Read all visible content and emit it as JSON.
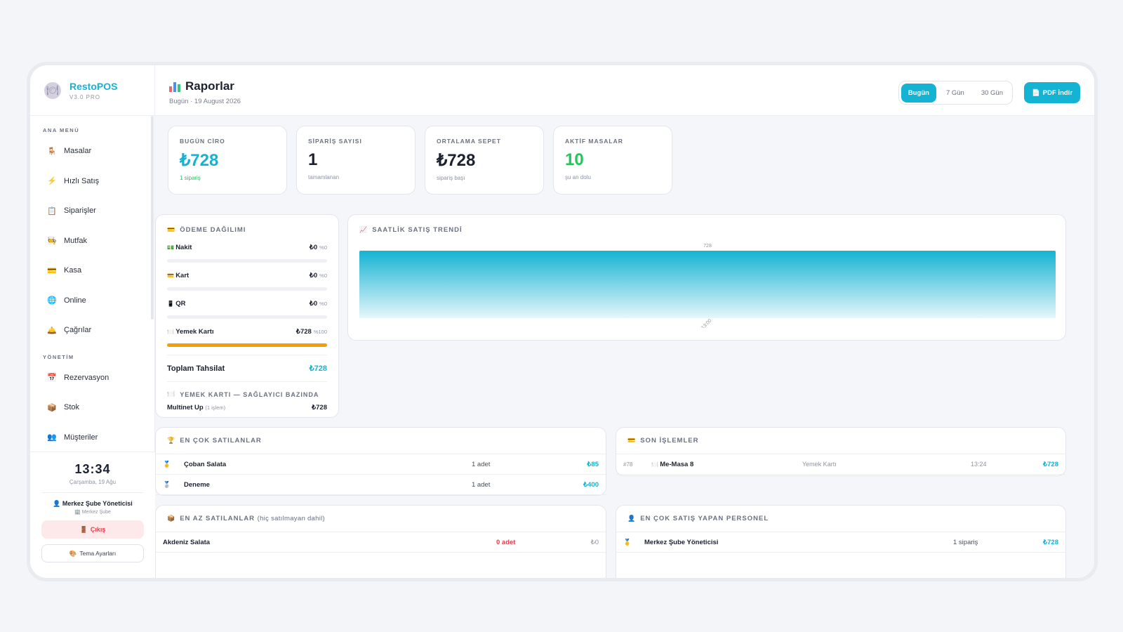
{
  "brand": {
    "name": "RestoPOS",
    "version": "V3.0 PRO"
  },
  "sidebar": {
    "section_main": "ANA MENÜ",
    "main_items": [
      {
        "label": "Masalar",
        "icon": "🪑"
      },
      {
        "label": "Hızlı Satış",
        "icon": "⚡"
      },
      {
        "label": "Siparişler",
        "icon": "📋"
      },
      {
        "label": "Mutfak",
        "icon": "🧑‍🍳"
      },
      {
        "label": "Kasa",
        "icon": "💳"
      },
      {
        "label": "Online",
        "icon": "🌐"
      },
      {
        "label": "Çağrılar",
        "icon": "🛎️"
      }
    ],
    "section_admin": "YÖNETİM",
    "admin_items": [
      {
        "label": "Rezervasyon",
        "icon": "📅"
      },
      {
        "label": "Stok",
        "icon": "📦"
      },
      {
        "label": "Müşteriler",
        "icon": "👥"
      }
    ],
    "clock": "13:34",
    "date": "Çarşamba, 19 Ağu",
    "user_name": "Merkez Şube Yöneticisi",
    "user_branch": "Merkez Şube",
    "logout": "Çıkış",
    "theme": "Tema Ayarları"
  },
  "header": {
    "title": "Raporlar",
    "subtitle": "Bugün · 19 August 2026",
    "ranges": [
      "Bugün",
      "7 Gün",
      "30 Gün"
    ],
    "pdf": "PDF İndir"
  },
  "kpis": [
    {
      "label": "BUGÜN CİRO",
      "value": "₺728",
      "sub": "1 sipariş",
      "color": "#14b3d3",
      "subcolor": "#22c55e"
    },
    {
      "label": "SİPARİŞ SAYISI",
      "value": "1",
      "sub": "tamamlanan",
      "color": "#1d2230",
      "subcolor": "#8f94a3"
    },
    {
      "label": "ORTALAMA SEPET",
      "value": "₺728",
      "sub": "sipariş başı",
      "color": "#1d2230",
      "subcolor": "#8f94a3"
    },
    {
      "label": "AKTİF MASALAR",
      "value": "10",
      "sub": "şu an dolu",
      "color": "#22c55e",
      "subcolor": "#8f94a3"
    }
  ],
  "payment": {
    "title": "ÖDEME DAĞILIMI",
    "rows": [
      {
        "label": "Nakit",
        "icon": "💵",
        "amount": "₺0",
        "pct": "%0",
        "fill": 0
      },
      {
        "label": "Kart",
        "icon": "💳",
        "amount": "₺0",
        "pct": "%0",
        "fill": 0
      },
      {
        "label": "QR",
        "icon": "📱",
        "amount": "₺0",
        "pct": "%0",
        "fill": 0
      },
      {
        "label": "Yemek Kartı",
        "icon": "🍽️",
        "amount": "₺728",
        "pct": "%100",
        "fill": 1
      }
    ],
    "total_label": "Toplam Tahsilat",
    "total_value": "₺728",
    "provider_title": "YEMEK KARTI — SAĞLAYICI BAZINDA",
    "provider_name": "Multinet Up",
    "provider_count": "(1 işlem)",
    "provider_value": "₺728"
  },
  "trend": {
    "title": "SAATLİK SATIŞ TRENDİ"
  },
  "chart_data": {
    "type": "bar",
    "categories": [
      "13:00"
    ],
    "values": [
      728
    ],
    "title": "SAATLİK SATIŞ TRENDİ",
    "xlabel": "",
    "ylabel": ""
  },
  "top_sellers": {
    "title": "EN ÇOK SATILANLAR",
    "rows": [
      {
        "medal": "🥇",
        "name": "Çoban Salata",
        "qty": "1 adet",
        "amount": "₺85"
      },
      {
        "medal": "🥈",
        "name": "Deneme",
        "qty": "1 adet",
        "amount": "₺400"
      }
    ]
  },
  "recent": {
    "title": "SON İŞLEMLER",
    "rows": [
      {
        "id": "#78",
        "name": "Me-Masa 8",
        "method": "Yemek Kartı",
        "time": "13:24",
        "amount": "₺728"
      }
    ]
  },
  "least_sellers": {
    "title": "EN AZ SATILANLAR",
    "title_note": "(hiç satılmayan dahil)",
    "rows": [
      {
        "name": "Akdeniz Salata",
        "qty": "0 adet",
        "amount": "₺0"
      }
    ]
  },
  "top_staff": {
    "title": "EN ÇOK SATIŞ YAPAN PERSONEL",
    "rows": [
      {
        "medal": "🥇",
        "name": "Merkez Şube Yöneticisi",
        "orders": "1 sipariş",
        "amount": "₺728"
      }
    ]
  }
}
